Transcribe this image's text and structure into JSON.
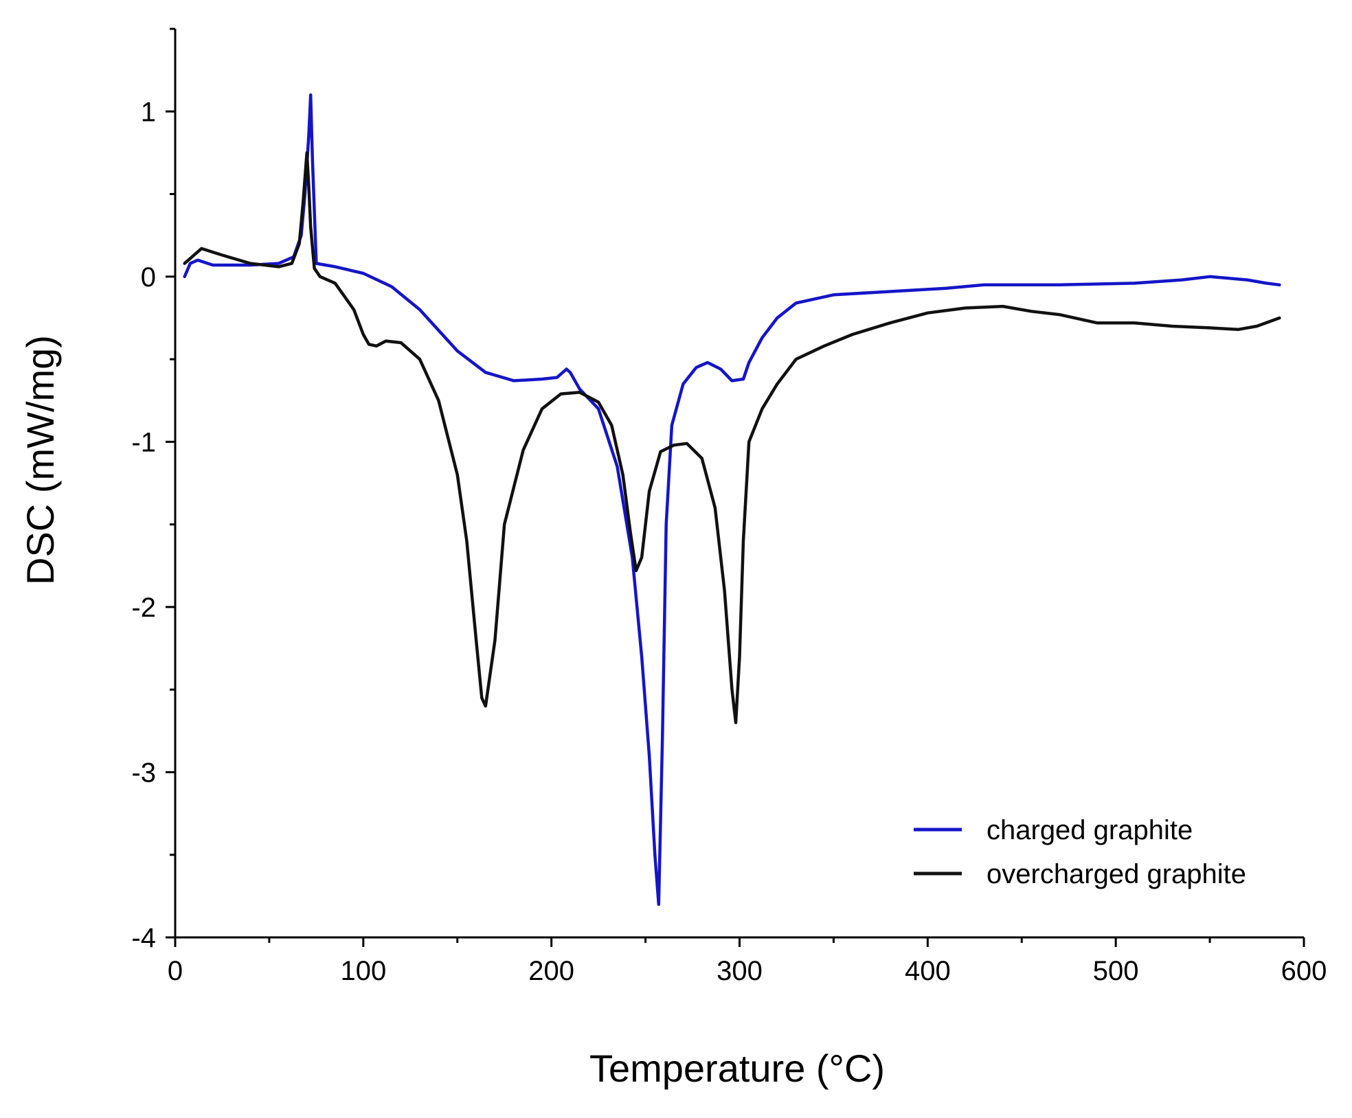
{
  "chart_data": {
    "type": "line",
    "title": "",
    "xlabel": "Temperature (°C)",
    "ylabel": "DSC (mW/mg)",
    "xlim": [
      0,
      600
    ],
    "ylim": [
      -4,
      1.5
    ],
    "x_ticks": [
      0,
      100,
      200,
      300,
      400,
      500,
      600
    ],
    "x_tick_labels": [
      "0",
      "100",
      "200",
      "300",
      "400",
      "500",
      "600"
    ],
    "y_ticks": [
      -4,
      -3,
      -2,
      -1,
      0,
      1
    ],
    "y_tick_labels": [
      "-4",
      "-3",
      "-2",
      "-1",
      "0",
      "1"
    ],
    "grid": false,
    "legend_position": "bottom-right",
    "series": [
      {
        "name": "charged graphite",
        "color": "#1515c8",
        "points": [
          [
            5,
            0.0
          ],
          [
            8,
            0.08
          ],
          [
            12,
            0.1
          ],
          [
            20,
            0.07
          ],
          [
            40,
            0.07
          ],
          [
            55,
            0.08
          ],
          [
            63,
            0.12
          ],
          [
            67,
            0.25
          ],
          [
            69,
            0.5
          ],
          [
            71,
            0.85
          ],
          [
            72,
            1.1
          ],
          [
            73,
            0.7
          ],
          [
            75,
            0.08
          ],
          [
            85,
            0.06
          ],
          [
            100,
            0.02
          ],
          [
            115,
            -0.06
          ],
          [
            130,
            -0.2
          ],
          [
            150,
            -0.45
          ],
          [
            165,
            -0.58
          ],
          [
            180,
            -0.63
          ],
          [
            195,
            -0.62
          ],
          [
            203,
            -0.61
          ],
          [
            208,
            -0.56
          ],
          [
            210,
            -0.58
          ],
          [
            215,
            -0.68
          ],
          [
            225,
            -0.8
          ],
          [
            235,
            -1.15
          ],
          [
            243,
            -1.7
          ],
          [
            248,
            -2.3
          ],
          [
            252,
            -2.9
          ],
          [
            255,
            -3.5
          ],
          [
            257,
            -3.8
          ],
          [
            259,
            -2.8
          ],
          [
            261,
            -1.5
          ],
          [
            264,
            -0.9
          ],
          [
            270,
            -0.65
          ],
          [
            277,
            -0.55
          ],
          [
            283,
            -0.52
          ],
          [
            290,
            -0.56
          ],
          [
            296,
            -0.63
          ],
          [
            302,
            -0.62
          ],
          [
            305,
            -0.52
          ],
          [
            312,
            -0.37
          ],
          [
            320,
            -0.25
          ],
          [
            330,
            -0.16
          ],
          [
            350,
            -0.11
          ],
          [
            380,
            -0.09
          ],
          [
            410,
            -0.07
          ],
          [
            430,
            -0.05
          ],
          [
            470,
            -0.05
          ],
          [
            510,
            -0.04
          ],
          [
            535,
            -0.02
          ],
          [
            550,
            0.0
          ],
          [
            570,
            -0.02
          ],
          [
            580,
            -0.04
          ],
          [
            587,
            -0.05
          ]
        ]
      },
      {
        "name": "overcharged graphite",
        "color": "#111111",
        "points": [
          [
            5,
            0.08
          ],
          [
            10,
            0.13
          ],
          [
            14,
            0.17
          ],
          [
            25,
            0.13
          ],
          [
            40,
            0.08
          ],
          [
            55,
            0.06
          ],
          [
            62,
            0.08
          ],
          [
            66,
            0.2
          ],
          [
            68,
            0.45
          ],
          [
            70,
            0.75
          ],
          [
            71,
            0.55
          ],
          [
            72,
            0.3
          ],
          [
            74,
            0.05
          ],
          [
            77,
            0.0
          ],
          [
            85,
            -0.04
          ],
          [
            95,
            -0.2
          ],
          [
            100,
            -0.35
          ],
          [
            103,
            -0.41
          ],
          [
            107,
            -0.42
          ],
          [
            112,
            -0.39
          ],
          [
            120,
            -0.4
          ],
          [
            130,
            -0.5
          ],
          [
            140,
            -0.75
          ],
          [
            150,
            -1.2
          ],
          [
            155,
            -1.6
          ],
          [
            160,
            -2.2
          ],
          [
            163,
            -2.55
          ],
          [
            165,
            -2.6
          ],
          [
            170,
            -2.2
          ],
          [
            175,
            -1.5
          ],
          [
            185,
            -1.05
          ],
          [
            195,
            -0.8
          ],
          [
            205,
            -0.71
          ],
          [
            215,
            -0.7
          ],
          [
            225,
            -0.76
          ],
          [
            232,
            -0.9
          ],
          [
            238,
            -1.2
          ],
          [
            242,
            -1.55
          ],
          [
            245,
            -1.78
          ],
          [
            248,
            -1.7
          ],
          [
            252,
            -1.3
          ],
          [
            258,
            -1.06
          ],
          [
            265,
            -1.02
          ],
          [
            272,
            -1.01
          ],
          [
            280,
            -1.1
          ],
          [
            287,
            -1.4
          ],
          [
            292,
            -1.9
          ],
          [
            296,
            -2.5
          ],
          [
            298,
            -2.7
          ],
          [
            300,
            -2.3
          ],
          [
            302,
            -1.6
          ],
          [
            305,
            -1.0
          ],
          [
            312,
            -0.8
          ],
          [
            320,
            -0.65
          ],
          [
            330,
            -0.5
          ],
          [
            345,
            -0.42
          ],
          [
            360,
            -0.35
          ],
          [
            380,
            -0.28
          ],
          [
            400,
            -0.22
          ],
          [
            420,
            -0.19
          ],
          [
            440,
            -0.18
          ],
          [
            455,
            -0.21
          ],
          [
            470,
            -0.23
          ],
          [
            490,
            -0.28
          ],
          [
            510,
            -0.28
          ],
          [
            530,
            -0.3
          ],
          [
            550,
            -0.31
          ],
          [
            565,
            -0.32
          ],
          [
            575,
            -0.3
          ],
          [
            587,
            -0.25
          ]
        ]
      }
    ]
  }
}
